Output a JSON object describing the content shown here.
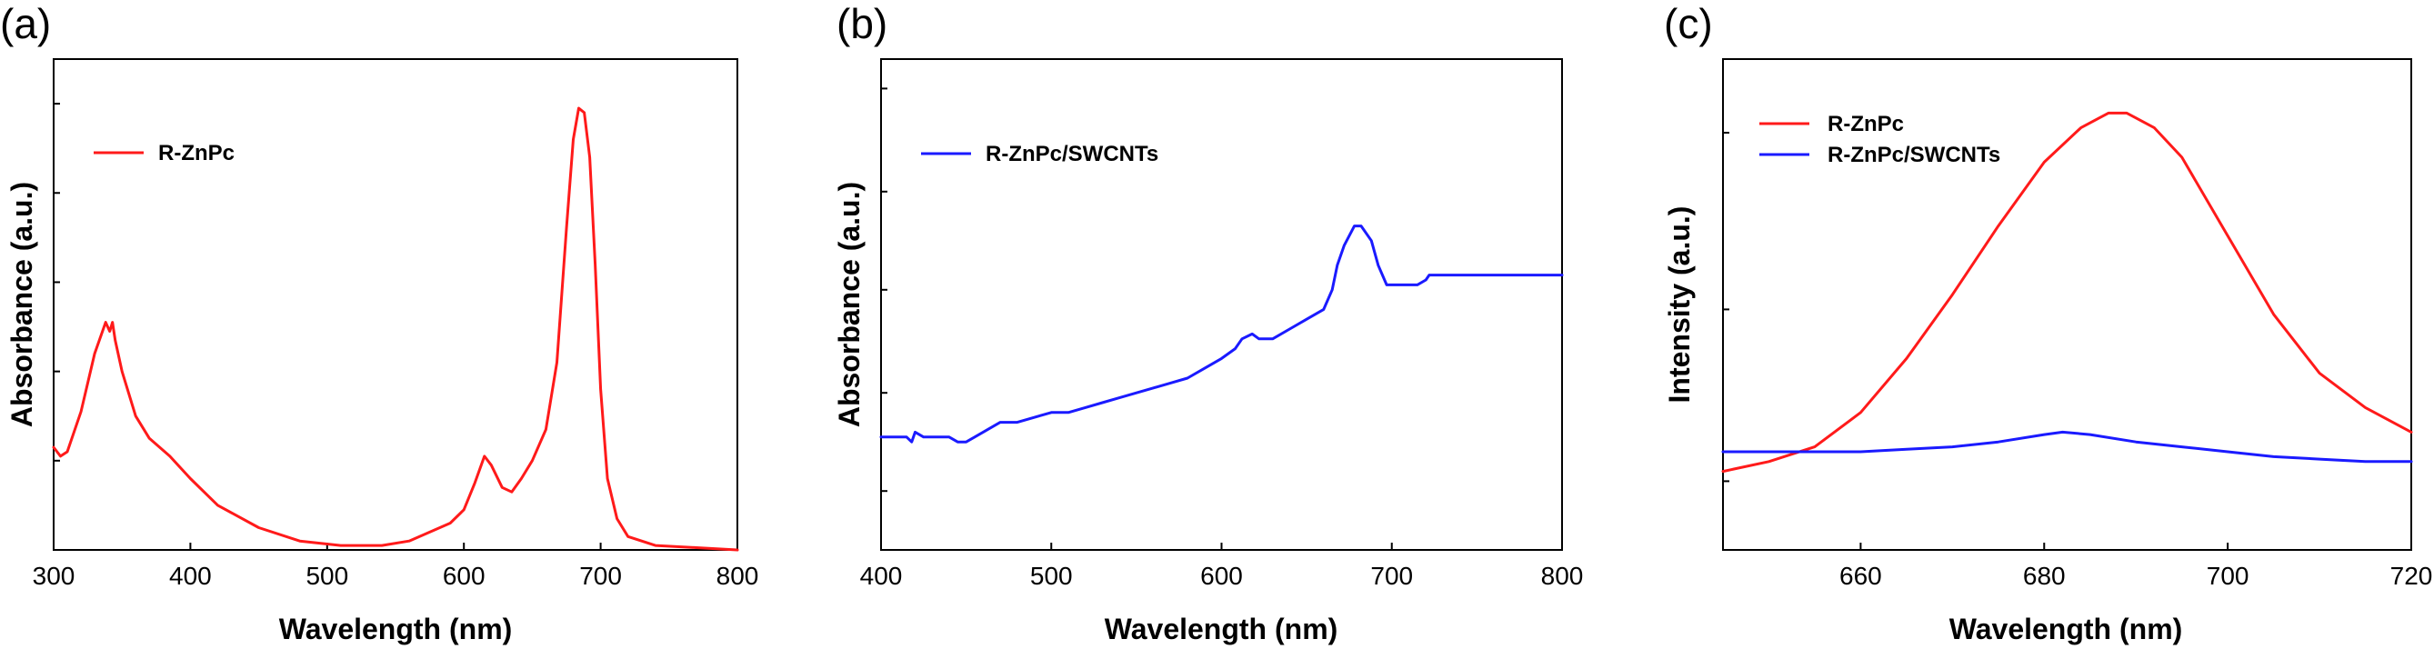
{
  "chart_data": [
    {
      "panel": "(a)",
      "type": "line",
      "xlabel": "Wavelength (nm)",
      "ylabel": "Absorbance (a.u.)",
      "xlim": [
        300,
        800
      ],
      "ylim": [
        0,
        1.1
      ],
      "xticks": [
        300,
        400,
        500,
        600,
        700,
        800
      ],
      "xticklabels": [
        "300",
        "400",
        "500",
        "600",
        "700",
        "800"
      ],
      "yticks": [
        0.2,
        0.4,
        0.6,
        0.8,
        1.0
      ],
      "legend_position": "top-left",
      "series": [
        {
          "name": "R-ZnPc",
          "color": "#ff1a1a",
          "x": [
            300,
            305,
            310,
            320,
            330,
            338,
            341,
            343,
            345,
            350,
            360,
            370,
            385,
            400,
            420,
            450,
            480,
            510,
            540,
            560,
            575,
            590,
            600,
            608,
            615,
            620,
            628,
            635,
            642,
            650,
            660,
            668,
            675,
            680,
            684,
            688,
            692,
            696,
            700,
            705,
            712,
            720,
            740,
            770,
            800
          ],
          "y": [
            0.23,
            0.21,
            0.22,
            0.31,
            0.44,
            0.51,
            0.49,
            0.51,
            0.47,
            0.4,
            0.3,
            0.25,
            0.21,
            0.16,
            0.1,
            0.05,
            0.02,
            0.01,
            0.01,
            0.02,
            0.04,
            0.06,
            0.09,
            0.15,
            0.21,
            0.19,
            0.14,
            0.13,
            0.16,
            0.2,
            0.27,
            0.42,
            0.72,
            0.92,
            0.99,
            0.98,
            0.88,
            0.64,
            0.36,
            0.16,
            0.07,
            0.03,
            0.01,
            0.005,
            0.0
          ]
        }
      ]
    },
    {
      "panel": "(b)",
      "type": "line",
      "xlabel": "Wavelength (nm)",
      "ylabel": "Absorbance (a.u.)",
      "xlim": [
        400,
        800
      ],
      "ylim": [
        0,
        1
      ],
      "xticks": [
        400,
        500,
        600,
        700,
        800
      ],
      "xticklabels": [
        "400",
        "500",
        "600",
        "700",
        "800"
      ],
      "yticks": [
        0.12,
        0.32,
        0.53,
        0.73,
        0.94
      ],
      "legend_position": "top-left",
      "series": [
        {
          "name": "R-ZnPc/SWCNTs",
          "color": "#1a1aff",
          "x": [
            400,
            415,
            418,
            420,
            425,
            430,
            440,
            445,
            450,
            455,
            460,
            470,
            480,
            490,
            500,
            510,
            520,
            530,
            540,
            550,
            560,
            570,
            580,
            590,
            600,
            608,
            612,
            618,
            622,
            630,
            640,
            650,
            660,
            665,
            668,
            672,
            678,
            682,
            688,
            692,
            697,
            700,
            705,
            715,
            720,
            722,
            725,
            740,
            760,
            780,
            800
          ],
          "y": [
            0.23,
            0.23,
            0.22,
            0.24,
            0.23,
            0.23,
            0.23,
            0.22,
            0.22,
            0.23,
            0.24,
            0.26,
            0.26,
            0.27,
            0.28,
            0.28,
            0.29,
            0.3,
            0.31,
            0.32,
            0.33,
            0.34,
            0.35,
            0.37,
            0.39,
            0.41,
            0.43,
            0.44,
            0.43,
            0.43,
            0.45,
            0.47,
            0.49,
            0.53,
            0.58,
            0.62,
            0.66,
            0.66,
            0.63,
            0.58,
            0.54,
            0.54,
            0.54,
            0.54,
            0.55,
            0.56,
            0.56,
            0.56,
            0.56,
            0.56,
            0.56
          ]
        }
      ]
    },
    {
      "panel": "(c)",
      "type": "line",
      "xlabel": "Wavelength (nm)",
      "ylabel": "Intensity (a.u.)",
      "xlim": [
        645,
        720
      ],
      "ylim": [
        0,
        1
      ],
      "xticks": [
        660,
        680,
        700,
        720
      ],
      "xticklabels": [
        "660",
        "680",
        "700",
        "720"
      ],
      "yticks": [
        0.14,
        0.49,
        0.85
      ],
      "legend_position": "top-left",
      "series": [
        {
          "name": "R-ZnPc",
          "color": "#ff1a1a",
          "x": [
            645,
            650,
            655,
            660,
            665,
            670,
            675,
            680,
            684,
            687,
            689,
            692,
            695,
            700,
            705,
            710,
            715,
            720
          ],
          "y": [
            0.16,
            0.18,
            0.21,
            0.28,
            0.39,
            0.52,
            0.66,
            0.79,
            0.86,
            0.89,
            0.89,
            0.86,
            0.8,
            0.64,
            0.48,
            0.36,
            0.29,
            0.24
          ]
        },
        {
          "name": "R-ZnPc/SWCNTs",
          "color": "#1a1aff",
          "x": [
            645,
            650,
            655,
            660,
            665,
            670,
            675,
            680,
            682,
            685,
            690,
            695,
            700,
            705,
            710,
            715,
            720
          ],
          "y": [
            0.2,
            0.2,
            0.2,
            0.2,
            0.205,
            0.21,
            0.22,
            0.235,
            0.24,
            0.235,
            0.22,
            0.21,
            0.2,
            0.19,
            0.185,
            0.18,
            0.18
          ]
        }
      ]
    }
  ]
}
